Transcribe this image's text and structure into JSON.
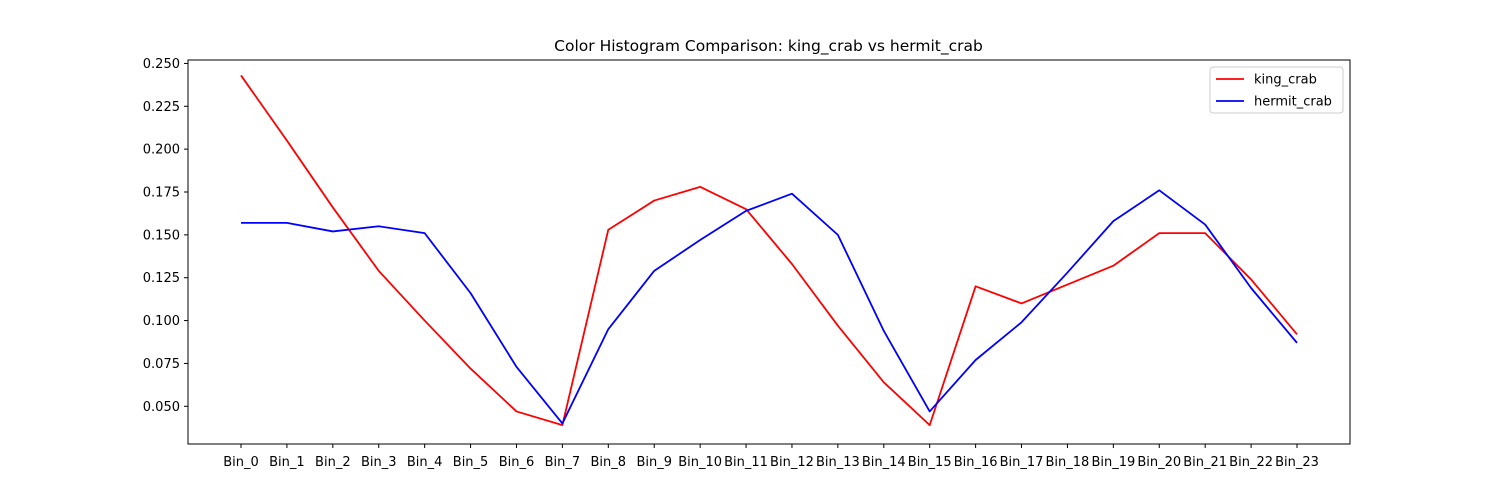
{
  "chart_data": {
    "type": "line",
    "title": "Color Histogram Comparison: king_crab vs hermit_crab",
    "xlabel": "",
    "ylabel": "",
    "categories": [
      "Bin_0",
      "Bin_1",
      "Bin_2",
      "Bin_3",
      "Bin_4",
      "Bin_5",
      "Bin_6",
      "Bin_7",
      "Bin_8",
      "Bin_9",
      "Bin_10",
      "Bin_11",
      "Bin_12",
      "Bin_13",
      "Bin_14",
      "Bin_15",
      "Bin_16",
      "Bin_17",
      "Bin_18",
      "Bin_19",
      "Bin_20",
      "Bin_21",
      "Bin_22",
      "Bin_23"
    ],
    "yticks": [
      "0.050",
      "0.075",
      "0.100",
      "0.125",
      "0.150",
      "0.175",
      "0.200",
      "0.225",
      "0.250"
    ],
    "ylim": [
      0.028,
      0.252
    ],
    "grid": false,
    "legend_position": "top-right",
    "series": [
      {
        "name": "king_crab",
        "color": "#ff0000",
        "values": [
          0.243,
          0.205,
          0.166,
          0.129,
          0.1,
          0.072,
          0.047,
          0.039,
          0.153,
          0.17,
          0.178,
          0.165,
          0.133,
          0.097,
          0.064,
          0.039,
          0.12,
          0.11,
          0.121,
          0.132,
          0.151,
          0.151,
          0.124,
          0.092
        ]
      },
      {
        "name": "hermit_crab",
        "color": "#0000ff",
        "values": [
          0.157,
          0.157,
          0.152,
          0.155,
          0.151,
          0.116,
          0.073,
          0.04,
          0.095,
          0.129,
          0.147,
          0.164,
          0.174,
          0.15,
          0.094,
          0.047,
          0.077,
          0.099,
          0.128,
          0.158,
          0.176,
          0.156,
          0.119,
          0.087
        ]
      }
    ]
  }
}
